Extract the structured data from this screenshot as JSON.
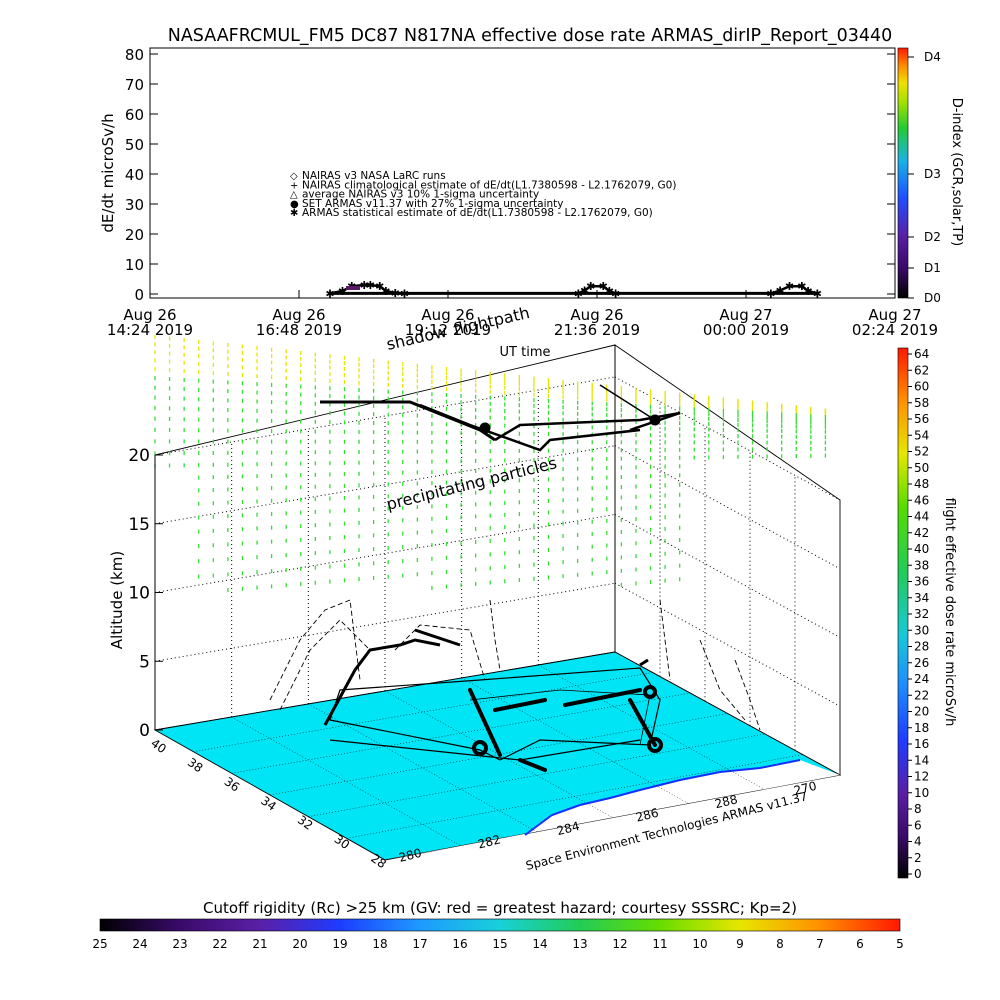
{
  "title": "NASAAFRCMUL_FM5 DC87 N817NA effective dose rate ARMAS_dirIP_Report_03440",
  "chart_data": [
    {
      "type": "line",
      "ylabel": "dE/dt microSv/h",
      "xlabel": "UT time",
      "ylim": [
        0,
        80
      ],
      "y_ticks": [
        "0",
        "10",
        "20",
        "30",
        "40",
        "50",
        "60",
        "70",
        "80"
      ],
      "x_ticks": [
        {
          "date": "Aug 26",
          "time": "14:24 2019"
        },
        {
          "date": "Aug 26",
          "time": "16:48 2019"
        },
        {
          "date": "Aug 26",
          "time": "19:12 2019"
        },
        {
          "date": "Aug 26",
          "time": "21:36 2019"
        },
        {
          "date": "Aug 27",
          "time": "00:00 2019"
        },
        {
          "date": "Aug 27",
          "time": "02:24 2019"
        }
      ],
      "legend": [
        {
          "symbol": "◇",
          "text": "NAIRAS v3 NASA LaRC runs"
        },
        {
          "symbol": "+",
          "text": "NAIRAS climatological estimate of dE/dt(L1.7380598 - L2.1762079, G0)"
        },
        {
          "symbol": "△",
          "text": "average NAIRAS v3 10% 1-sigma uncertainty"
        },
        {
          "symbol": "●",
          "text": "SET ARMAS v11.37 with 27% 1-sigma uncertainty"
        },
        {
          "symbol": "✱",
          "text": "ARMAS statistical estimate of dE/dt(L1.7380598 - L2.1762079, G0)"
        }
      ],
      "right_axis_label": "D-index (GCR,solar,TP)",
      "right_axis_ticks": [
        "D0",
        "D1",
        "D2",
        "D3",
        "D4"
      ],
      "series": [
        {
          "name": "ARMAS statistical estimate",
          "x_hours_from_first_tick": [
            2.9,
            3.1,
            3.25,
            3.45,
            3.55,
            3.7,
            3.8,
            3.95,
            4.1,
            6.9,
            7.0,
            7.1,
            7.3,
            7.4,
            7.5,
            10.0,
            10.15,
            10.3,
            10.5,
            10.6,
            10.75
          ],
          "values": [
            0.2,
            1.0,
            2.6,
            3.0,
            3.0,
            2.6,
            1.0,
            0.4,
            0.2,
            0.2,
            1.2,
            2.6,
            2.6,
            1.0,
            0.2,
            0.2,
            1.2,
            2.6,
            2.6,
            1.0,
            0.2
          ]
        }
      ]
    },
    {
      "type": "scatter",
      "title": "",
      "ylabel": "Altitude (km)",
      "zlim": [
        0,
        20
      ],
      "z_ticks": [
        "0",
        "5",
        "10",
        "15",
        "20"
      ],
      "lat_ticks": [
        "40",
        "38",
        "36",
        "34",
        "32",
        "30",
        "28"
      ],
      "lon_ticks": [
        "280",
        "282",
        "284",
        "286",
        "288",
        "270"
      ],
      "annotations": [
        "shadow",
        "flightpath",
        "precipitating particles"
      ],
      "right_axis_label": "flight effective dose rate microSv/h",
      "right_axis_ticks": [
        "0",
        "2",
        "4",
        "6",
        "8",
        "10",
        "12",
        "14",
        "16",
        "18",
        "20",
        "22",
        "24",
        "26",
        "28",
        "30",
        "32",
        "34",
        "36",
        "38",
        "40",
        "42",
        "44",
        "46",
        "48",
        "50",
        "52",
        "54",
        "56",
        "58",
        "60",
        "62",
        "64"
      ],
      "credit": "Space Environment Technologies ARMAS v11.37",
      "bottom_colorbar_label": "Cutoff rigidity (Rc) >25 km (GV: red = greatest hazard; courtesy SSSRC; Kp=2)",
      "bottom_colorbar_ticks": [
        "25",
        "24",
        "23",
        "22",
        "21",
        "20",
        "19",
        "18",
        "17",
        "16",
        "15",
        "14",
        "13",
        "12",
        "11",
        "10",
        "9",
        "8",
        "7",
        "6",
        "5"
      ]
    }
  ],
  "colors": {
    "ocean": "#00e5f5",
    "land": "#ffffff",
    "particles_top": "#e6e600",
    "particles_low": "#33dd33",
    "flight": "#000000"
  }
}
